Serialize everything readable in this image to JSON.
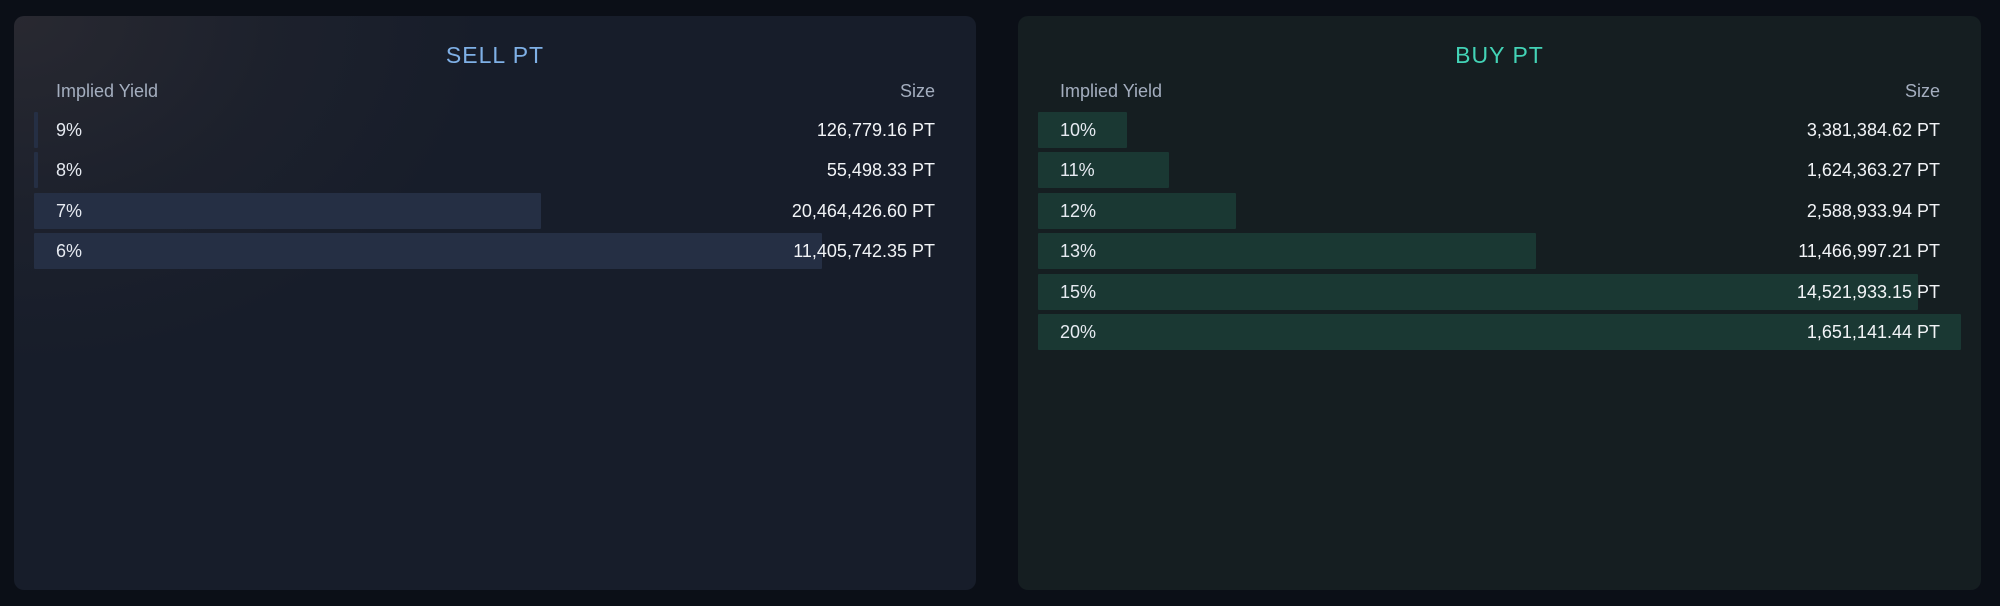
{
  "sell": {
    "title": "SELL PT",
    "col_yield": "Implied Yield",
    "col_size": "Size",
    "rows": [
      {
        "yield": "9%",
        "size": "126,779.16 PT",
        "fill": 0.004
      },
      {
        "yield": "8%",
        "size": "55,498.33 PT",
        "fill": 0.004
      },
      {
        "yield": "7%",
        "size": "20,464,426.60 PT",
        "fill": 0.55
      },
      {
        "yield": "6%",
        "size": "11,405,742.35 PT",
        "fill": 0.855
      }
    ]
  },
  "buy": {
    "title": "BUY PT",
    "col_yield": "Implied Yield",
    "col_size": "Size",
    "rows": [
      {
        "yield": "10%",
        "size": "3,381,384.62 PT",
        "fill": 0.096
      },
      {
        "yield": "11%",
        "size": "1,624,363.27 PT",
        "fill": 0.142
      },
      {
        "yield": "12%",
        "size": "2,588,933.94 PT",
        "fill": 0.214
      },
      {
        "yield": "13%",
        "size": "11,466,997.21 PT",
        "fill": 0.54
      },
      {
        "yield": "15%",
        "size": "14,521,933.15 PT",
        "fill": 0.953
      },
      {
        "yield": "20%",
        "size": "1,651,141.44 PT",
        "fill": 1.0
      }
    ]
  }
}
